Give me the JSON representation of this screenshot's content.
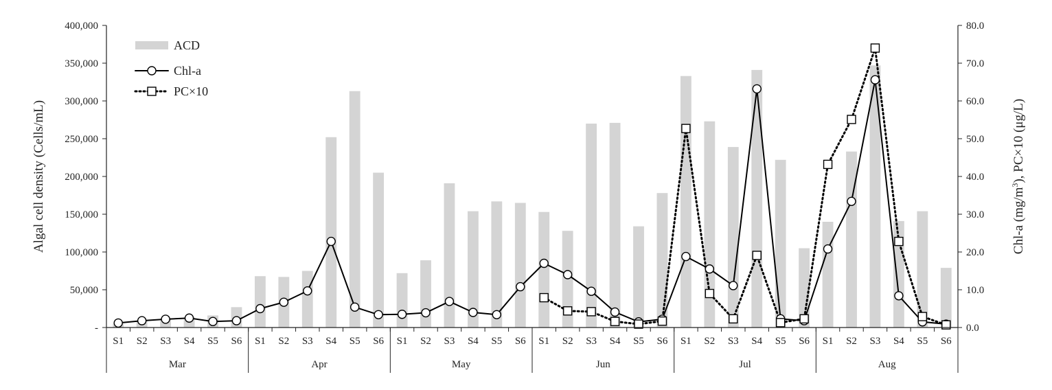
{
  "chart_data": {
    "type": "bar",
    "title": "",
    "months": [
      "Mar",
      "Apr",
      "May",
      "Jun",
      "Jul",
      "Aug"
    ],
    "sites": [
      "S1",
      "S2",
      "S3",
      "S4",
      "S5",
      "S6"
    ],
    "ylabel_left": "Algal cell density (Cells/mL)",
    "ylabel_right_parts": [
      "Chl-a (mg/m",
      "3",
      "),  PC×10 (μg/L)"
    ],
    "ylim_left": [
      0,
      400000
    ],
    "ylim_right": [
      0,
      80
    ],
    "left_ticks": [
      {
        "value": 0,
        "label": "-"
      },
      {
        "value": 50000,
        "label": "50,000"
      },
      {
        "value": 100000,
        "label": "100,000"
      },
      {
        "value": 150000,
        "label": "150,000"
      },
      {
        "value": 200000,
        "label": "200,000"
      },
      {
        "value": 250000,
        "label": "250,000"
      },
      {
        "value": 300000,
        "label": "300,000"
      },
      {
        "value": 350000,
        "label": "350,000"
      },
      {
        "value": 400000,
        "label": "400,000"
      }
    ],
    "right_ticks": [
      {
        "value": 0,
        "label": "0.0"
      },
      {
        "value": 10,
        "label": "10.0"
      },
      {
        "value": 20,
        "label": "20.0"
      },
      {
        "value": 30,
        "label": "30.0"
      },
      {
        "value": 40,
        "label": "40.0"
      },
      {
        "value": 50,
        "label": "50.0"
      },
      {
        "value": 60,
        "label": "60.0"
      },
      {
        "value": 70,
        "label": "70.0"
      },
      {
        "value": 80,
        "label": "80.0"
      }
    ],
    "grid": false,
    "legend_position": "top-left",
    "series": [
      {
        "name": "ACD",
        "kind": "bar",
        "axis": "left",
        "color": "#d4d4d4",
        "values": [
          5000,
          9000,
          12000,
          14000,
          16000,
          27000,
          68000,
          67000,
          75000,
          252000,
          313000,
          205000,
          72000,
          89000,
          191000,
          154000,
          167000,
          165000,
          153000,
          128000,
          270000,
          271000,
          134000,
          178000,
          333000,
          273000,
          239000,
          341000,
          222000,
          105000,
          140000,
          233000,
          347000,
          141000,
          154000,
          79000
        ]
      },
      {
        "name": "Chl-a",
        "kind": "line",
        "axis": "right",
        "color": "#000000",
        "marker": "circle",
        "line_style": "solid",
        "segments": [
          [
            0,
            35
          ]
        ],
        "values": [
          1.2,
          1.8,
          2.2,
          2.5,
          1.6,
          1.8,
          5.0,
          6.7,
          9.7,
          22.8,
          5.4,
          3.4,
          3.5,
          3.9,
          6.9,
          4.0,
          3.4,
          10.8,
          17.0,
          14.0,
          9.6,
          4.1,
          1.5,
          2.2,
          18.8,
          15.5,
          11.1,
          63.2,
          2.3,
          1.8,
          20.8,
          33.4,
          65.6,
          8.4,
          1.5,
          0.9
        ]
      },
      {
        "name": "PC×10",
        "kind": "line",
        "axis": "right",
        "color": "#000000",
        "marker": "square",
        "line_style": "dotted",
        "segments": [
          [
            18,
            35
          ]
        ],
        "values": [
          null,
          null,
          null,
          null,
          null,
          null,
          null,
          null,
          null,
          null,
          null,
          null,
          null,
          null,
          null,
          null,
          null,
          null,
          7.9,
          4.4,
          4.2,
          1.6,
          0.9,
          1.7,
          52.7,
          9.0,
          2.3,
          19.1,
          1.3,
          2.3,
          43.2,
          55.1,
          74.0,
          22.8,
          2.9,
          0.7
        ]
      }
    ]
  }
}
